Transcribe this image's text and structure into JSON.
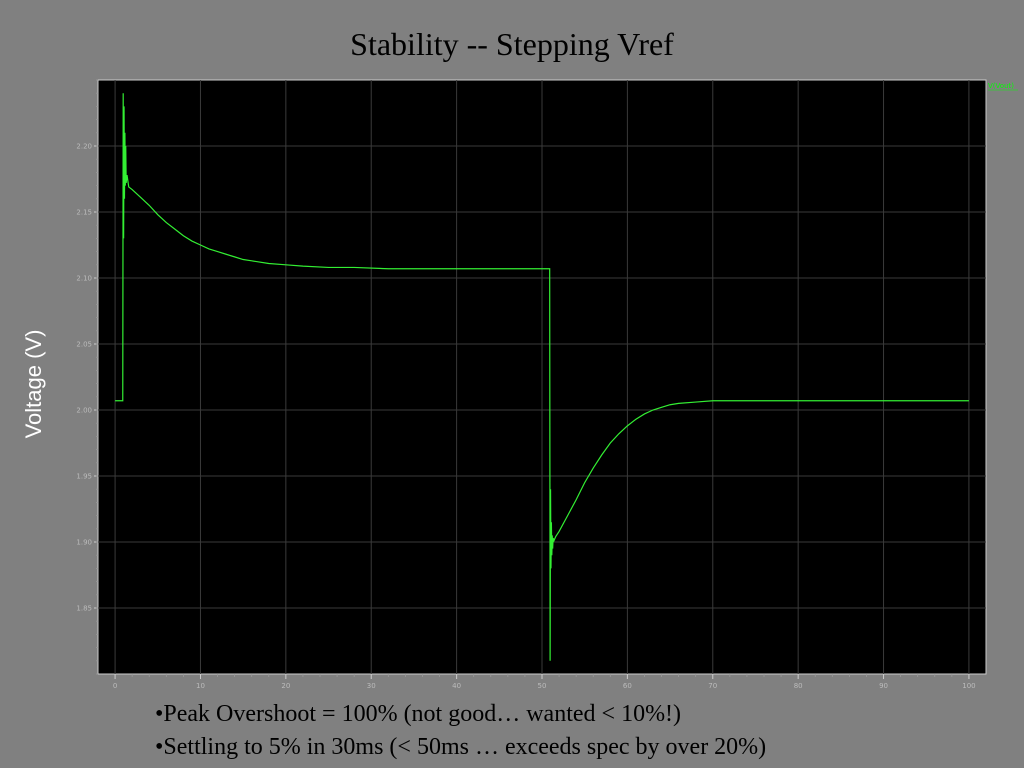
{
  "slide": {
    "title": "Stability -- Stepping Vref",
    "bullets": [
      "•Peak Overshoot = 100% (not good… wanted < 10%!)",
      "•Settling to 5% in 30ms (< 50ms … exceeds spec by over 20%)"
    ]
  },
  "chart_data": {
    "type": "line",
    "title": "Stability -- Stepping Vref",
    "xlabel": "",
    "ylabel": "Voltage (V)",
    "xlim": [
      -2,
      102
    ],
    "ylim": [
      1.8,
      2.25
    ],
    "x_ticks": [
      0,
      10,
      20,
      30,
      40,
      50,
      60,
      70,
      80,
      90,
      100
    ],
    "y_ticks": [
      1.85,
      1.9,
      1.95,
      2.0,
      2.05,
      2.1,
      2.15,
      2.2
    ],
    "y_tick_labels": [
      "1.85",
      "1.90",
      "1.95",
      "2.00",
      "2.05",
      "2.10",
      "2.15",
      "2.20"
    ],
    "grid": true,
    "legend_position": "top-right",
    "background": "#000000",
    "line_color": "#33ee33",
    "series": [
      {
        "name": "V(Vout)",
        "x": [
          0,
          0.9,
          0.95,
          1.0,
          1.05,
          1.1,
          1.15,
          1.2,
          1.25,
          1.3,
          1.4,
          1.6,
          2,
          3,
          4,
          5,
          6,
          7,
          8,
          9,
          10,
          11,
          12,
          13,
          14,
          15,
          16,
          18,
          20,
          22,
          25,
          28,
          32,
          36,
          40,
          44,
          48,
          50.9,
          50.95,
          51.0,
          51.05,
          51.1,
          51.15,
          51.2,
          51.25,
          51.3,
          51.4,
          51.6,
          52,
          53,
          54,
          55,
          56,
          57,
          58,
          59,
          60,
          61,
          62,
          63,
          64,
          65,
          66,
          68,
          70,
          72,
          75,
          80,
          85,
          90,
          95,
          100
        ],
        "y": [
          2.007,
          2.007,
          2.24,
          2.13,
          2.23,
          2.16,
          2.21,
          2.17,
          2.2,
          2.172,
          2.178,
          2.169,
          2.167,
          2.161,
          2.155,
          2.148,
          2.142,
          2.137,
          2.132,
          2.128,
          2.125,
          2.122,
          2.12,
          2.118,
          2.116,
          2.114,
          2.113,
          2.111,
          2.11,
          2.109,
          2.108,
          2.108,
          2.107,
          2.107,
          2.107,
          2.107,
          2.107,
          2.107,
          1.81,
          1.94,
          1.88,
          1.915,
          1.89,
          1.905,
          1.895,
          1.903,
          1.901,
          1.904,
          1.908,
          1.92,
          1.932,
          1.945,
          1.956,
          1.966,
          1.975,
          1.982,
          1.988,
          1.993,
          1.997,
          2.0,
          2.002,
          2.004,
          2.005,
          2.006,
          2.007,
          2.007,
          2.007,
          2.007,
          2.007,
          2.007,
          2.007,
          2.007
        ]
      }
    ]
  }
}
